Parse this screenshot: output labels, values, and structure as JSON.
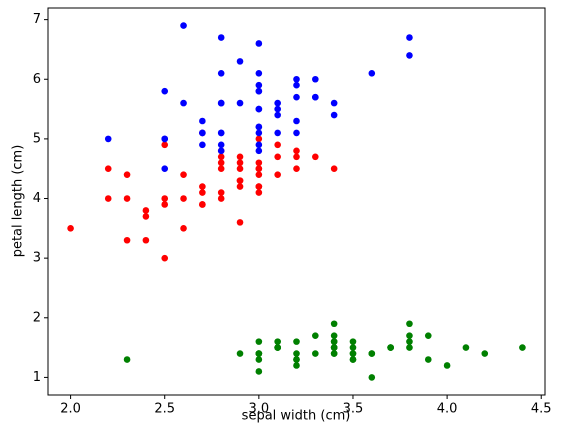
{
  "chart_data": {
    "type": "scatter",
    "xlabel": "sepal width (cm)",
    "ylabel": "petal length (cm)",
    "xlim": [
      1.88,
      4.52
    ],
    "ylim": [
      0.705,
      7.195
    ],
    "xticks": [
      {
        "value": 2,
        "label": "2.0"
      },
      2.5,
      {
        "value": 3,
        "label": "3.0"
      },
      3.5,
      {
        "value": 4,
        "label": "4.0"
      },
      4.5
    ],
    "yticks": [
      1,
      2,
      3,
      4,
      5,
      6,
      7
    ],
    "series": [
      {
        "color": "#008000",
        "x": [
          3.5,
          3.0,
          3.2,
          3.1,
          3.6,
          3.9,
          3.4,
          3.4,
          2.9,
          3.1,
          3.7,
          3.4,
          3.0,
          3.0,
          4.0,
          4.4,
          3.9,
          3.5,
          3.8,
          3.8,
          3.4,
          3.7,
          3.6,
          3.3,
          3.4,
          3.0,
          3.4,
          3.5,
          3.4,
          3.2,
          3.1,
          3.4,
          4.1,
          4.2,
          3.1,
          3.2,
          3.5,
          3.6,
          3.0,
          3.4,
          3.5,
          2.3,
          3.2,
          3.5,
          3.8,
          3.0,
          3.8,
          3.2,
          3.7,
          3.3
        ],
        "y": [
          1.4,
          1.4,
          1.3,
          1.5,
          1.4,
          1.7,
          1.4,
          1.5,
          1.4,
          1.5,
          1.5,
          1.6,
          1.4,
          1.1,
          1.2,
          1.5,
          1.3,
          1.4,
          1.7,
          1.5,
          1.7,
          1.5,
          1.0,
          1.7,
          1.9,
          1.6,
          1.6,
          1.5,
          1.4,
          1.6,
          1.6,
          1.5,
          1.5,
          1.4,
          1.5,
          1.2,
          1.3,
          1.4,
          1.3,
          1.5,
          1.3,
          1.3,
          1.3,
          1.6,
          1.9,
          1.4,
          1.6,
          1.4,
          1.5,
          1.4
        ]
      },
      {
        "color": "#ff0000",
        "x": [
          3.2,
          3.2,
          3.1,
          2.3,
          2.8,
          2.8,
          3.3,
          2.4,
          2.9,
          2.7,
          2.0,
          3.0,
          2.2,
          2.9,
          2.9,
          3.1,
          3.0,
          2.7,
          2.2,
          2.5,
          3.2,
          2.8,
          2.5,
          2.8,
          2.9,
          3.0,
          2.8,
          3.0,
          2.9,
          2.6,
          2.4,
          2.4,
          2.7,
          2.7,
          3.0,
          3.4,
          3.1,
          2.3,
          3.0,
          2.5,
          2.6,
          3.0,
          2.6,
          2.3,
          2.7,
          3.0,
          2.9,
          2.9,
          2.5,
          2.8
        ],
        "y": [
          4.7,
          4.5,
          4.9,
          4.0,
          4.6,
          4.5,
          4.7,
          3.3,
          4.6,
          3.9,
          3.5,
          4.2,
          4.0,
          4.7,
          3.6,
          4.4,
          4.5,
          4.1,
          4.5,
          3.9,
          4.8,
          4.0,
          4.9,
          4.7,
          4.3,
          4.4,
          4.8,
          5.0,
          4.5,
          3.5,
          3.8,
          3.7,
          3.9,
          5.1,
          4.5,
          4.5,
          4.7,
          4.4,
          4.1,
          4.0,
          4.4,
          4.6,
          4.0,
          3.3,
          4.2,
          4.2,
          4.2,
          4.3,
          3.0,
          4.1
        ]
      },
      {
        "color": "#0000ff",
        "x": [
          3.3,
          2.7,
          3.0,
          2.9,
          3.0,
          3.0,
          2.5,
          2.9,
          2.5,
          3.6,
          3.2,
          2.7,
          3.0,
          2.5,
          2.8,
          3.2,
          3.0,
          3.8,
          2.6,
          2.2,
          3.2,
          2.8,
          2.8,
          2.7,
          3.3,
          3.2,
          2.8,
          3.0,
          2.8,
          3.0,
          2.8,
          3.8,
          2.8,
          2.8,
          2.6,
          3.0,
          3.4,
          3.1,
          3.0,
          3.1,
          3.1,
          3.1,
          2.7,
          3.2,
          3.3,
          3.0,
          2.5,
          3.0,
          3.4,
          3.0
        ],
        "y": [
          6.0,
          5.1,
          5.9,
          5.6,
          5.8,
          6.6,
          4.5,
          6.3,
          5.8,
          6.1,
          5.1,
          5.3,
          5.5,
          5.0,
          5.1,
          5.3,
          5.5,
          6.7,
          6.9,
          5.0,
          5.7,
          4.9,
          6.7,
          4.9,
          5.7,
          6.0,
          4.8,
          4.9,
          5.6,
          5.8,
          6.1,
          6.4,
          5.6,
          5.1,
          5.6,
          6.1,
          5.6,
          5.5,
          4.8,
          5.4,
          5.6,
          5.1,
          5.1,
          5.9,
          5.7,
          5.2,
          5.0,
          5.2,
          5.4,
          5.1
        ]
      }
    ]
  }
}
